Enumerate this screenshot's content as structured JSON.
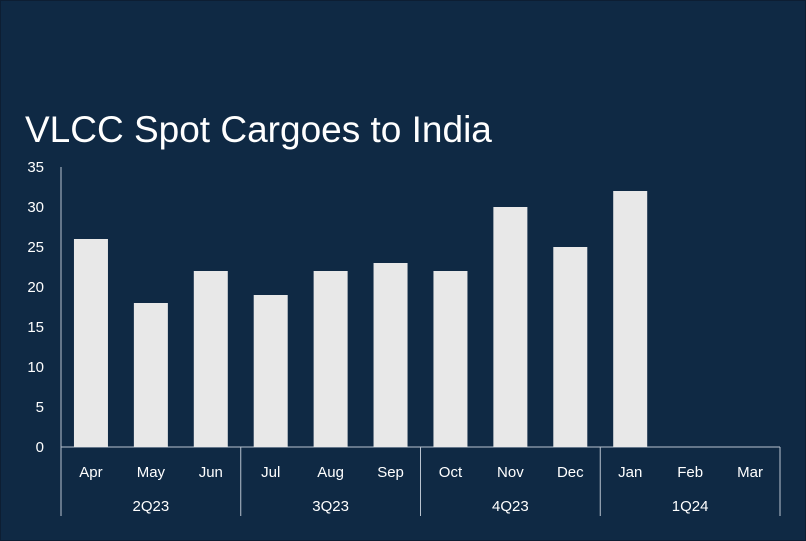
{
  "chart_data": {
    "type": "bar",
    "title": "VLCC Spot Cargoes to India",
    "categories": [
      "Apr",
      "May",
      "Jun",
      "Jul",
      "Aug",
      "Sep",
      "Oct",
      "Nov",
      "Dec",
      "Jan",
      "Feb",
      "Mar"
    ],
    "groups": [
      {
        "label": "2Q23",
        "categories": [
          "Apr",
          "May",
          "Jun"
        ]
      },
      {
        "label": "3Q23",
        "categories": [
          "Jul",
          "Aug",
          "Sep"
        ]
      },
      {
        "label": "4Q23",
        "categories": [
          "Oct",
          "Nov",
          "Dec"
        ]
      },
      {
        "label": "1Q24",
        "categories": [
          "Jan",
          "Feb",
          "Mar"
        ]
      }
    ],
    "values": [
      26,
      18,
      22,
      19,
      22,
      23,
      22,
      30,
      25,
      32,
      null,
      null
    ],
    "ylim": [
      0,
      35
    ],
    "yticks": [
      "0",
      "5",
      "10",
      "15",
      "20",
      "25",
      "30",
      "35"
    ],
    "grid": false,
    "legend": "none",
    "colors": {
      "background": "#0f2944",
      "bar": "#e8e8e8",
      "axis": "#b9c3cf",
      "text": "#ffffff"
    }
  }
}
